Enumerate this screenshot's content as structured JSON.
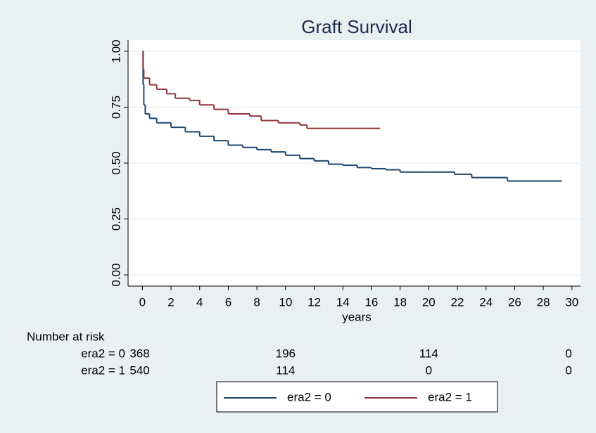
{
  "chart_data": {
    "type": "km",
    "title": "Graft Survival",
    "x_label": "years",
    "xlim": [
      -1,
      30.6
    ],
    "ylim": [
      -0.05,
      1.05
    ],
    "xticks": [
      0,
      2,
      4,
      6,
      8,
      10,
      12,
      14,
      16,
      18,
      20,
      22,
      24,
      26,
      28,
      30
    ],
    "yticks": [
      {
        "value": 0,
        "label": "0.00"
      },
      {
        "value": 0.25,
        "label": "0.25"
      },
      {
        "value": 0.5,
        "label": "0.50"
      },
      {
        "value": 0.75,
        "label": "0.75"
      },
      {
        "value": 1,
        "label": "1.00"
      }
    ],
    "grid": true,
    "series": [
      {
        "name": "era2 = 0",
        "color": "#1a476f",
        "x": [
          0,
          0.05,
          0.1,
          0.2,
          0.5,
          1,
          2,
          3,
          4,
          5,
          6,
          7,
          8,
          9,
          10,
          11,
          12,
          13,
          14,
          15,
          16,
          17,
          18,
          20,
          21.8,
          23,
          25.5,
          29.3
        ],
        "values": [
          1,
          0.85,
          0.76,
          0.72,
          0.7,
          0.68,
          0.66,
          0.64,
          0.62,
          0.6,
          0.58,
          0.57,
          0.56,
          0.55,
          0.535,
          0.52,
          0.51,
          0.495,
          0.49,
          0.48,
          0.475,
          0.47,
          0.46,
          0.46,
          0.45,
          0.435,
          0.42,
          0.42
        ]
      },
      {
        "name": "era2 = 1",
        "color": "#90353b",
        "x": [
          0,
          0.05,
          0.1,
          0.5,
          1,
          1.7,
          2.3,
          3.3,
          4,
          5,
          6,
          7.5,
          8.3,
          9.5,
          11,
          11.5,
          16.6
        ],
        "values": [
          1,
          0.92,
          0.88,
          0.85,
          0.83,
          0.81,
          0.79,
          0.78,
          0.76,
          0.74,
          0.72,
          0.71,
          0.69,
          0.68,
          0.67,
          0.655,
          0.655
        ]
      }
    ],
    "risk_table": {
      "title": "Number at risk",
      "times": [
        0,
        10,
        20,
        30
      ],
      "rows": [
        {
          "label": "era2 = 0",
          "counts": [
            368,
            196,
            114,
            0
          ]
        },
        {
          "label": "era2 = 1",
          "counts": [
            540,
            114,
            0,
            0
          ]
        }
      ]
    }
  }
}
